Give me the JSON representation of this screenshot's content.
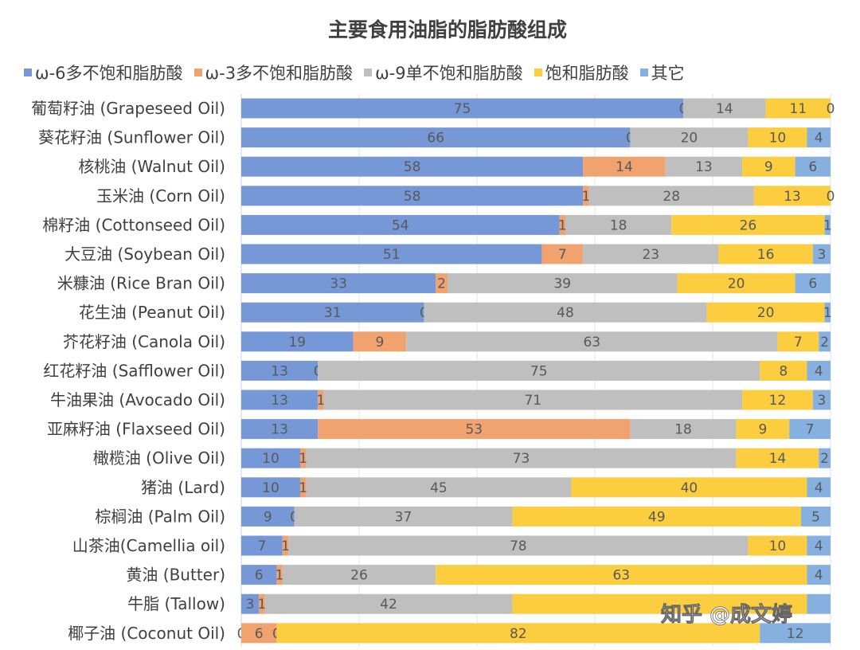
{
  "chart_data": {
    "type": "bar",
    "orientation": "horizontal",
    "stacked": "percent",
    "title": "主要食用油脂的脂肪酸组成",
    "xlim": [
      0,
      100
    ],
    "grid": true,
    "legend_position": "top",
    "categories": [
      "葡萄籽油 (Grapeseed Oil)",
      "葵花籽油 (Sunflower Oil)",
      "核桃油 (Walnut Oil)",
      "玉米油 (Corn Oil)",
      "棉籽油 (Cottonseed Oil)",
      "大豆油 (Soybean Oil)",
      "米糠油 (Rice Bran Oil)",
      "花生油 (Peanut Oil)",
      "芥花籽油 (Canola Oil)",
      "红花籽油 (Safflower Oil)",
      "牛油果油 (Avocado Oil)",
      "亚麻籽油 (Flaxseed Oil)",
      "橄榄油 (Olive Oil)",
      "猪油 (Lard)",
      "棕榈油 (Palm Oil)",
      "山茶油(Camellia oil)",
      "黄油 (Butter)",
      "牛脂 (Tallow)",
      "椰子油 (Coconut Oil)"
    ],
    "series": [
      {
        "name": "ω-6多不饱和脂肪酸",
        "color": "#7698d6",
        "values": [
          75,
          66,
          58,
          58,
          54,
          51,
          33,
          31,
          19,
          13,
          13,
          13,
          10,
          10,
          9,
          7,
          6,
          3,
          0
        ]
      },
      {
        "name": "ω-3多不饱和脂肪酸",
        "color": "#f0a36e",
        "values": [
          0,
          0,
          14,
          1,
          1,
          7,
          2,
          0,
          9,
          0,
          1,
          53,
          1,
          1,
          0,
          1,
          1,
          1,
          6
        ]
      },
      {
        "name": "ω-9单不饱和脂肪酸",
        "color": "#bfbfbf",
        "values": [
          14,
          20,
          13,
          28,
          18,
          23,
          39,
          48,
          63,
          75,
          71,
          18,
          73,
          45,
          37,
          78,
          26,
          42,
          0
        ]
      },
      {
        "name": "饱和脂肪酸",
        "color": "#fccd3e",
        "values": [
          11,
          10,
          9,
          13,
          26,
          16,
          20,
          20,
          7,
          8,
          12,
          9,
          14,
          40,
          49,
          10,
          63,
          50,
          82
        ]
      },
      {
        "name": "其它",
        "color": "#86b0e0",
        "values": [
          0,
          4,
          6,
          0,
          1,
          3,
          6,
          1,
          2,
          4,
          3,
          7,
          2,
          4,
          5,
          4,
          4,
          4,
          12
        ]
      }
    ],
    "watermark": "知乎 @成文婷"
  }
}
